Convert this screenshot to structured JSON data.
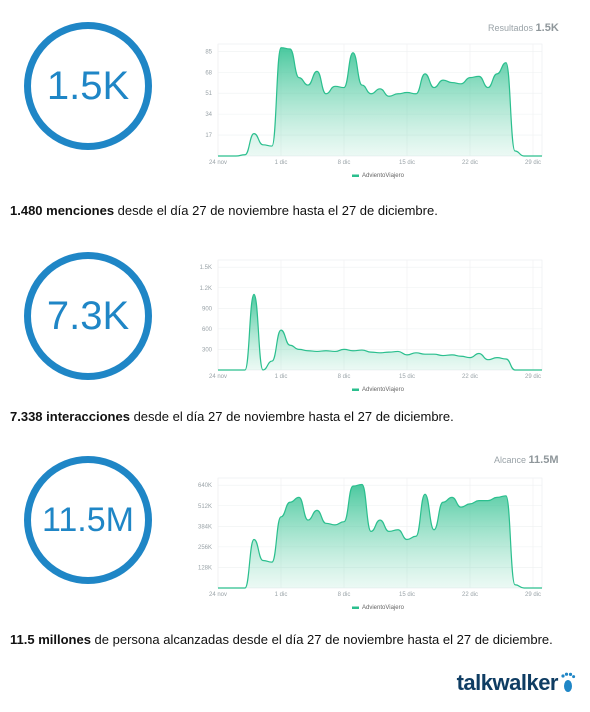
{
  "sections": [
    {
      "kpi": "1.5K",
      "corner_label": "Resultados",
      "corner_value": "1.5K",
      "caption_bold": "1.480 menciones",
      "caption_rest": " desde el día 27 de noviembre hasta el 27 de diciembre."
    },
    {
      "kpi": "7.3K",
      "corner_label": "",
      "corner_value": "",
      "caption_bold": "7.338 interacciones",
      "caption_rest": " desde el día 27 de noviembre hasta el 27 de diciembre."
    },
    {
      "kpi": "11.5M",
      "corner_label": "Alcance",
      "corner_value": "11.5M",
      "caption_bold": "11.5 millones",
      "caption_rest": " de persona alcanzadas desde el día 27 de noviembre hasta el 27 de diciembre."
    }
  ],
  "colors": {
    "ring": "#1f86c6",
    "series": "#2bbf8e",
    "fill": "#7fd9b8"
  },
  "chart_data": [
    {
      "type": "area",
      "x_ticks": [
        "24 nov",
        "1 dic",
        "8 dic",
        "15 dic",
        "22 dic",
        "29 dic"
      ],
      "y_ticks": [
        "17",
        "34",
        "51",
        "68",
        "85"
      ],
      "ylim": [
        0,
        90
      ],
      "legend": "AdvientoViajero",
      "x": [
        24,
        25,
        26,
        27,
        28,
        29,
        30,
        31,
        32,
        33,
        34,
        35,
        36,
        37,
        38,
        39,
        40,
        41,
        42,
        43,
        44,
        45,
        46,
        47,
        48,
        49,
        50,
        51,
        52,
        53,
        54,
        55,
        56,
        57,
        58,
        59,
        60
      ],
      "values": [
        0,
        0,
        0,
        1,
        18,
        9,
        8,
        87,
        86,
        63,
        57,
        68,
        50,
        56,
        55,
        83,
        57,
        50,
        54,
        48,
        50,
        51,
        50,
        66,
        55,
        61,
        59,
        58,
        63,
        64,
        55,
        66,
        75,
        4,
        0,
        0,
        0
      ]
    },
    {
      "type": "area",
      "x_ticks": [
        "24 nov",
        "1 dic",
        "8 dic",
        "15 dic",
        "22 dic",
        "29 dic"
      ],
      "y_ticks": [
        "300",
        "600",
        "900",
        "1.2K",
        "1.5K"
      ],
      "ylim": [
        0,
        1600
      ],
      "legend": "AdvientoViajero",
      "x": [
        24,
        25,
        26,
        27,
        28,
        29,
        30,
        31,
        32,
        33,
        34,
        35,
        36,
        37,
        38,
        39,
        40,
        41,
        42,
        43,
        44,
        45,
        46,
        47,
        48,
        49,
        50,
        51,
        52,
        53,
        54,
        55,
        56,
        57,
        58,
        59,
        60
      ],
      "values": [
        0,
        0,
        0,
        0,
        1100,
        0,
        130,
        580,
        360,
        300,
        280,
        270,
        280,
        270,
        300,
        280,
        290,
        260,
        250,
        260,
        270,
        220,
        250,
        230,
        230,
        210,
        220,
        200,
        180,
        240,
        150,
        180,
        160,
        0,
        0,
        0,
        0
      ]
    },
    {
      "type": "area",
      "x_ticks": [
        "24 nov",
        "1 dic",
        "8 dic",
        "15 dic",
        "22 dic",
        "29 dic"
      ],
      "y_ticks": [
        "128K",
        "256K",
        "384K",
        "512K",
        "640K"
      ],
      "ylim": [
        0,
        680000
      ],
      "legend": "AdvientoViajero",
      "x": [
        24,
        25,
        26,
        27,
        28,
        29,
        30,
        31,
        32,
        33,
        34,
        35,
        36,
        37,
        38,
        39,
        40,
        41,
        42,
        43,
        44,
        45,
        46,
        47,
        48,
        49,
        50,
        51,
        52,
        53,
        54,
        55,
        56,
        57,
        58,
        59,
        60
      ],
      "values": [
        0,
        0,
        0,
        0,
        300000,
        170000,
        160000,
        440000,
        530000,
        560000,
        420000,
        480000,
        400000,
        390000,
        410000,
        630000,
        640000,
        350000,
        420000,
        350000,
        360000,
        300000,
        320000,
        580000,
        360000,
        530000,
        560000,
        500000,
        520000,
        540000,
        540000,
        560000,
        570000,
        20000,
        0,
        0,
        0
      ]
    }
  ]
}
